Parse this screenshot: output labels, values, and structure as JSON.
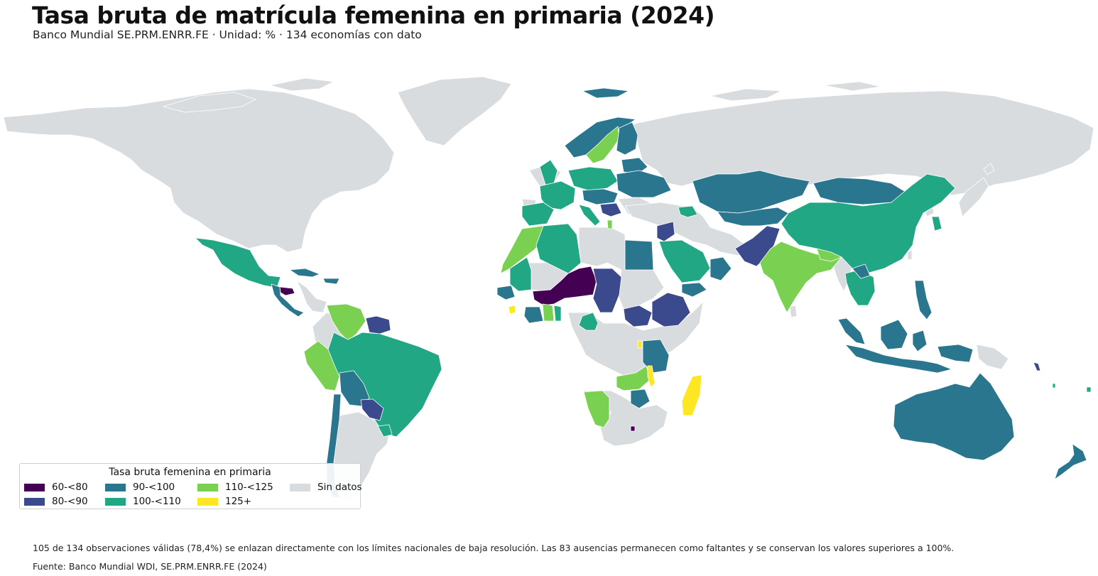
{
  "title": "Tasa bruta de matrícula femenina en primaria (2024)",
  "subtitle": "Banco Mundial SE.PRM.ENRR.FE · Unidad: % · 134 economías con dato",
  "legend": {
    "title": "Tasa bruta femenina en primaria",
    "items": [
      {
        "label": "60-<80",
        "color": "#440154"
      },
      {
        "label": "80-<90",
        "color": "#3b4a8c"
      },
      {
        "label": "90-<100",
        "color": "#2a768e"
      },
      {
        "label": "100-<110",
        "color": "#21a783"
      },
      {
        "label": "110-<125",
        "color": "#7ad151"
      },
      {
        "label": "125+",
        "color": "#fde725"
      },
      {
        "label": "Sin datos",
        "color": "#d9dcdf"
      }
    ]
  },
  "colors": {
    "c60_80": "#440154",
    "c80_90": "#3b4a8c",
    "c90_100": "#2a768e",
    "c100_110": "#21a783",
    "c110_125": "#7ad151",
    "c125": "#fde725",
    "nodata": "#d9dcdf",
    "ocean": "#ffffff"
  },
  "note": "105 de 134 observaciones válidas (78,4%) se enlazan directamente con los límites nacionales de baja resolución. Las 83 ausencias permanecen como faltantes y se conservan los valores superiores a 100%.",
  "source": "Fuente: Banco Mundial WDI, SE.PRM.ENRR.FE (2024)"
}
